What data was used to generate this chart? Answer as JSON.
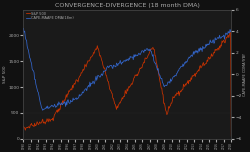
{
  "title": "CONVERGENCE-DIVERGENCE (18 month DMA)",
  "title_fontsize": 4.5,
  "bg_color": "#111111",
  "plot_bg_color": "#1a1a1a",
  "text_color": "#aaaaaa",
  "sp500_color": "#cc3300",
  "cape_color": "#3366cc",
  "sp500_label": "S&P 500",
  "cape_label": "CAPE-MAAPE DMA(18m)",
  "ylabel_left": "S&P 500",
  "ylabel_right": "CAPE-MAAPE CDMA/IYBY",
  "sp500_ylim": [
    0,
    2500
  ],
  "cape_ylim": [
    -6,
    6
  ],
  "sp500_yticks": [
    0,
    500,
    1000,
    1500,
    2000
  ],
  "cape_yticks": [
    -6,
    -4,
    -2,
    0,
    2,
    4,
    6
  ],
  "xmin": 1990,
  "xmax": 2018
}
